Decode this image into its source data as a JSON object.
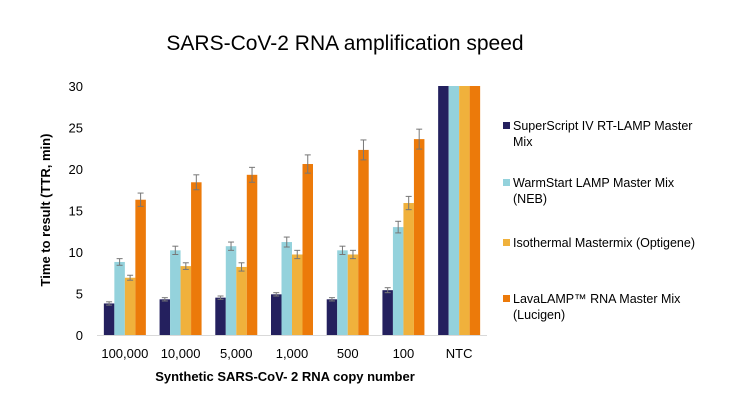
{
  "chart_data": {
    "type": "bar",
    "title": "SARS-CoV-2 RNA amplification speed",
    "xlabel": "Synthetic SARS-CoV- 2 RNA copy number",
    "ylabel": "Time to result (TTR, min)",
    "ylim": [
      0,
      30
    ],
    "yticks": [
      0,
      5,
      10,
      15,
      20,
      25,
      30
    ],
    "grid": false,
    "legend_position": "right",
    "categories": [
      "100,000",
      "10,000",
      "5,000",
      "1,000",
      "500",
      "100",
      "NTC"
    ],
    "series": [
      {
        "name": "SuperScript IV RT-LAMP Master Mix",
        "color": "#24205e",
        "values": [
          3.8,
          4.3,
          4.5,
          4.9,
          4.3,
          5.4,
          30
        ],
        "errors": [
          0.2,
          0.2,
          0.2,
          0.2,
          0.2,
          0.3,
          null
        ]
      },
      {
        "name": "WarmStart LAMP Master Mix (NEB)",
        "color": "#94d2dc",
        "values": [
          8.8,
          10.2,
          10.7,
          11.2,
          10.2,
          13.0,
          30
        ],
        "errors": [
          0.4,
          0.5,
          0.5,
          0.6,
          0.5,
          0.7,
          null
        ]
      },
      {
        "name": "Isothermal Mastermix (Optigene)",
        "color": "#f0b13c",
        "values": [
          6.9,
          8.3,
          8.2,
          9.7,
          9.7,
          15.9,
          30
        ],
        "errors": [
          0.3,
          0.4,
          0.5,
          0.5,
          0.5,
          0.8,
          null
        ]
      },
      {
        "name": "LavaLAMP™ RNA Master Mix (Lucigen)",
        "color": "#ec7a0a",
        "values": [
          16.3,
          18.4,
          19.3,
          20.6,
          22.3,
          23.6,
          30
        ],
        "errors": [
          0.8,
          0.9,
          0.9,
          1.1,
          1.2,
          1.2,
          null
        ]
      }
    ]
  }
}
